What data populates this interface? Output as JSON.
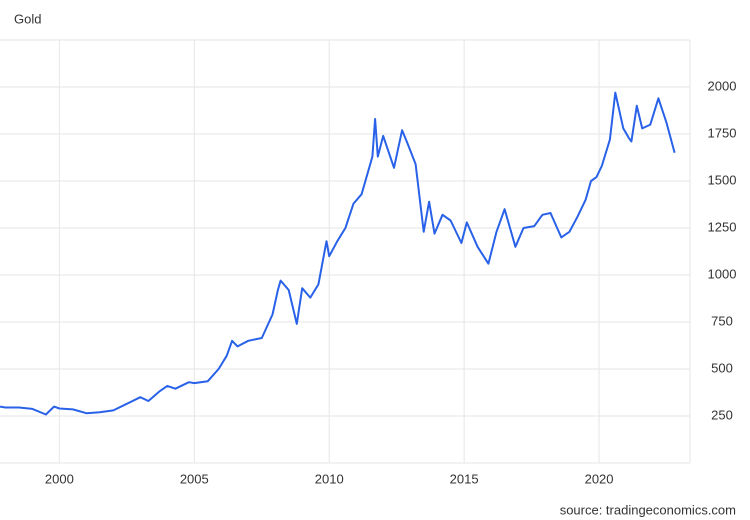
{
  "chart_data": {
    "type": "line",
    "title": "Gold",
    "source": "source: tradingeconomics.com",
    "grid": true,
    "xlim": [
      1997.8,
      2023.37
    ],
    "xticks": [
      2000,
      2005,
      2010,
      2015,
      2020
    ],
    "ylim": [
      0,
      2250
    ],
    "yticks": [
      250,
      500,
      750,
      1000,
      1250,
      1500,
      1750,
      2000
    ],
    "x": [
      1997.8,
      1998.0,
      1998.5,
      1999.0,
      1999.5,
      1999.8,
      2000.0,
      2000.5,
      2001.0,
      2001.5,
      2002.0,
      2002.5,
      2003.0,
      2003.3,
      2003.7,
      2004.0,
      2004.3,
      2004.8,
      2005.0,
      2005.5,
      2005.9,
      2006.2,
      2006.4,
      2006.6,
      2007.0,
      2007.5,
      2007.9,
      2008.1,
      2008.2,
      2008.5,
      2008.8,
      2009.0,
      2009.3,
      2009.6,
      2009.9,
      2010.0,
      2010.3,
      2010.6,
      2010.9,
      2011.2,
      2011.6,
      2011.7,
      2011.8,
      2012.0,
      2012.4,
      2012.7,
      2012.9,
      2013.2,
      2013.5,
      2013.7,
      2013.9,
      2014.2,
      2014.5,
      2014.9,
      2015.1,
      2015.5,
      2015.9,
      2016.2,
      2016.5,
      2016.9,
      2017.2,
      2017.6,
      2017.9,
      2018.2,
      2018.6,
      2018.9,
      2019.2,
      2019.5,
      2019.7,
      2019.9,
      2020.1,
      2020.4,
      2020.6,
      2020.9,
      2021.1,
      2021.2,
      2021.4,
      2021.6,
      2021.9,
      2022.2,
      2022.5,
      2022.8
    ],
    "series": [
      {
        "name": "Gold",
        "color": "#2962e8",
        "values": [
          300,
          295,
          295,
          288,
          258,
          300,
          290,
          285,
          265,
          270,
          280,
          315,
          350,
          330,
          380,
          410,
          395,
          430,
          425,
          435,
          500,
          570,
          650,
          620,
          650,
          665,
          790,
          920,
          970,
          920,
          740,
          930,
          880,
          950,
          1180,
          1100,
          1180,
          1250,
          1380,
          1430,
          1630,
          1830,
          1630,
          1740,
          1570,
          1770,
          1700,
          1590,
          1230,
          1390,
          1220,
          1320,
          1290,
          1170,
          1280,
          1150,
          1060,
          1230,
          1350,
          1150,
          1250,
          1260,
          1320,
          1330,
          1200,
          1230,
          1310,
          1400,
          1500,
          1520,
          1580,
          1720,
          1970,
          1780,
          1730,
          1710,
          1900,
          1780,
          1800,
          1940,
          1810,
          1650
        ]
      }
    ]
  }
}
